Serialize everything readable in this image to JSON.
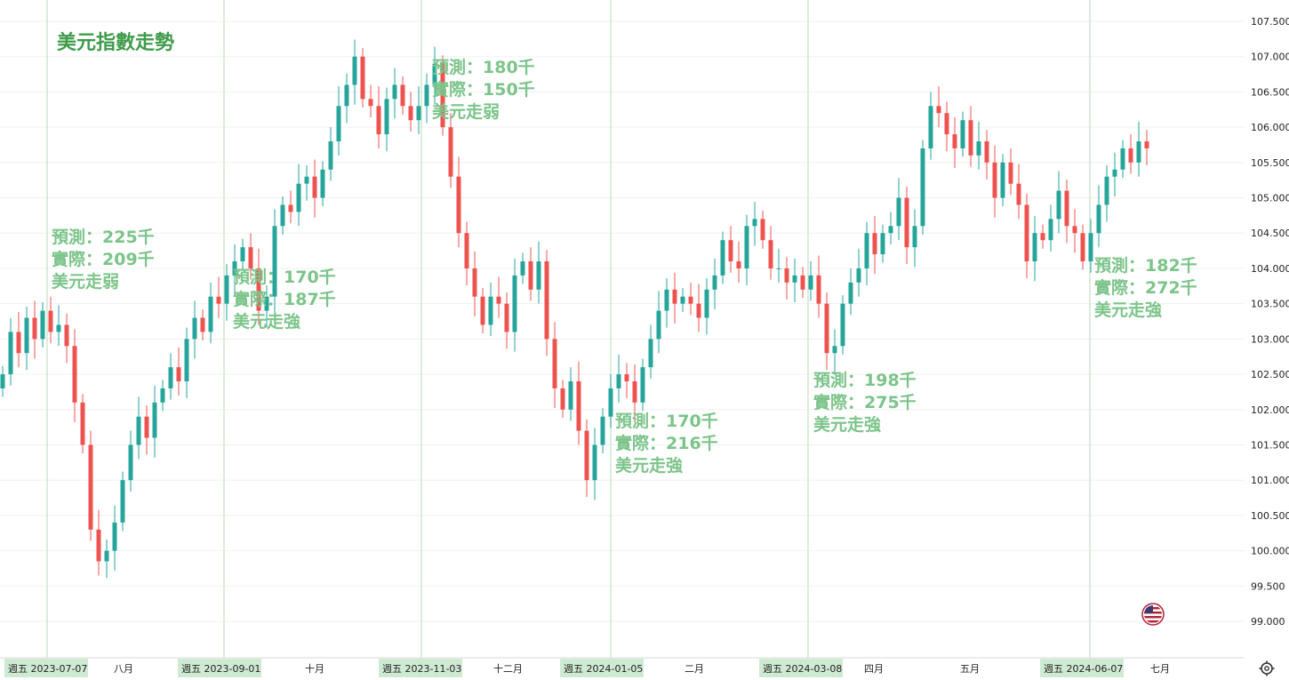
{
  "chart_data": {
    "type": "candlestick",
    "title": "美元指數走勢",
    "ylim": [
      99.0,
      107.5
    ],
    "y_ticks": [
      "99.000",
      "99.500",
      "100.000",
      "100.500",
      "101.000",
      "101.500",
      "102.000",
      "102.500",
      "103.000",
      "103.500",
      "104.000",
      "104.500",
      "105.000",
      "105.500",
      "106.000",
      "106.500",
      "107.000",
      "107.500"
    ],
    "month_labels": [
      "八月",
      "十月",
      "十二月",
      "二月",
      "四月",
      "五月",
      "七月"
    ],
    "events": [
      {
        "axis_label": "週五 2023-07-07",
        "lines": [
          "預測：225千",
          "實際：209千",
          "美元走弱"
        ]
      },
      {
        "axis_label": "週五 2023-09-01",
        "lines": [
          "預測：170千",
          "實際：187千",
          "美元走強"
        ]
      },
      {
        "axis_label": "週五 2023-11-03",
        "lines": [
          "預測：180千",
          "實際：150千",
          "美元走弱"
        ]
      },
      {
        "axis_label": "週五 2024-01-05",
        "lines": [
          "預測：170千",
          "實際：216千",
          "美元走強"
        ]
      },
      {
        "axis_label": "週五 2024-03-08",
        "lines": [
          "預測：198千",
          "實際：275千",
          "美元走強"
        ]
      },
      {
        "axis_label": "週五 2024-06-07",
        "lines": [
          "預測：182千",
          "實際：272千",
          "美元走強"
        ]
      }
    ],
    "closes": [
      102.5,
      103.1,
      102.8,
      103.3,
      103.0,
      103.4,
      103.1,
      103.2,
      102.9,
      102.1,
      101.5,
      100.3,
      99.85,
      100.0,
      100.4,
      101.0,
      101.5,
      101.9,
      101.6,
      102.1,
      102.3,
      102.6,
      102.4,
      103.0,
      103.3,
      103.1,
      103.6,
      103.5,
      103.9,
      104.1,
      104.3,
      104.0,
      103.4,
      103.6,
      104.6,
      104.9,
      104.8,
      105.2,
      105.3,
      105.0,
      105.4,
      105.8,
      106.3,
      106.6,
      107.0,
      106.4,
      106.3,
      105.9,
      106.4,
      106.6,
      106.3,
      106.1,
      106.3,
      106.6,
      106.9,
      106.0,
      105.3,
      104.5,
      104.0,
      103.6,
      103.2,
      103.6,
      103.5,
      103.1,
      103.9,
      104.1,
      103.7,
      104.1,
      103.0,
      102.3,
      102.0,
      102.4,
      101.7,
      101.0,
      101.5,
      101.9,
      102.3,
      102.5,
      102.4,
      102.1,
      102.6,
      103.0,
      103.4,
      103.7,
      103.5,
      103.6,
      103.5,
      103.3,
      103.7,
      103.9,
      104.4,
      104.1,
      104.0,
      104.6,
      104.7,
      104.4,
      104.0,
      104.0,
      103.8,
      103.9,
      103.7,
      103.9,
      103.5,
      102.8,
      102.9,
      103.5,
      103.8,
      104.0,
      104.5,
      104.2,
      104.5,
      104.6,
      105.0,
      104.3,
      104.6,
      105.7,
      106.3,
      106.2,
      105.9,
      105.7,
      106.1,
      105.6,
      105.8,
      105.5,
      105.0,
      105.5,
      105.2,
      104.9,
      104.1,
      104.5,
      104.4,
      104.7,
      105.1,
      104.6,
      104.5,
      104.1,
      104.5,
      104.9,
      105.3,
      105.4,
      105.7,
      105.5,
      105.8,
      105.7
    ]
  }
}
